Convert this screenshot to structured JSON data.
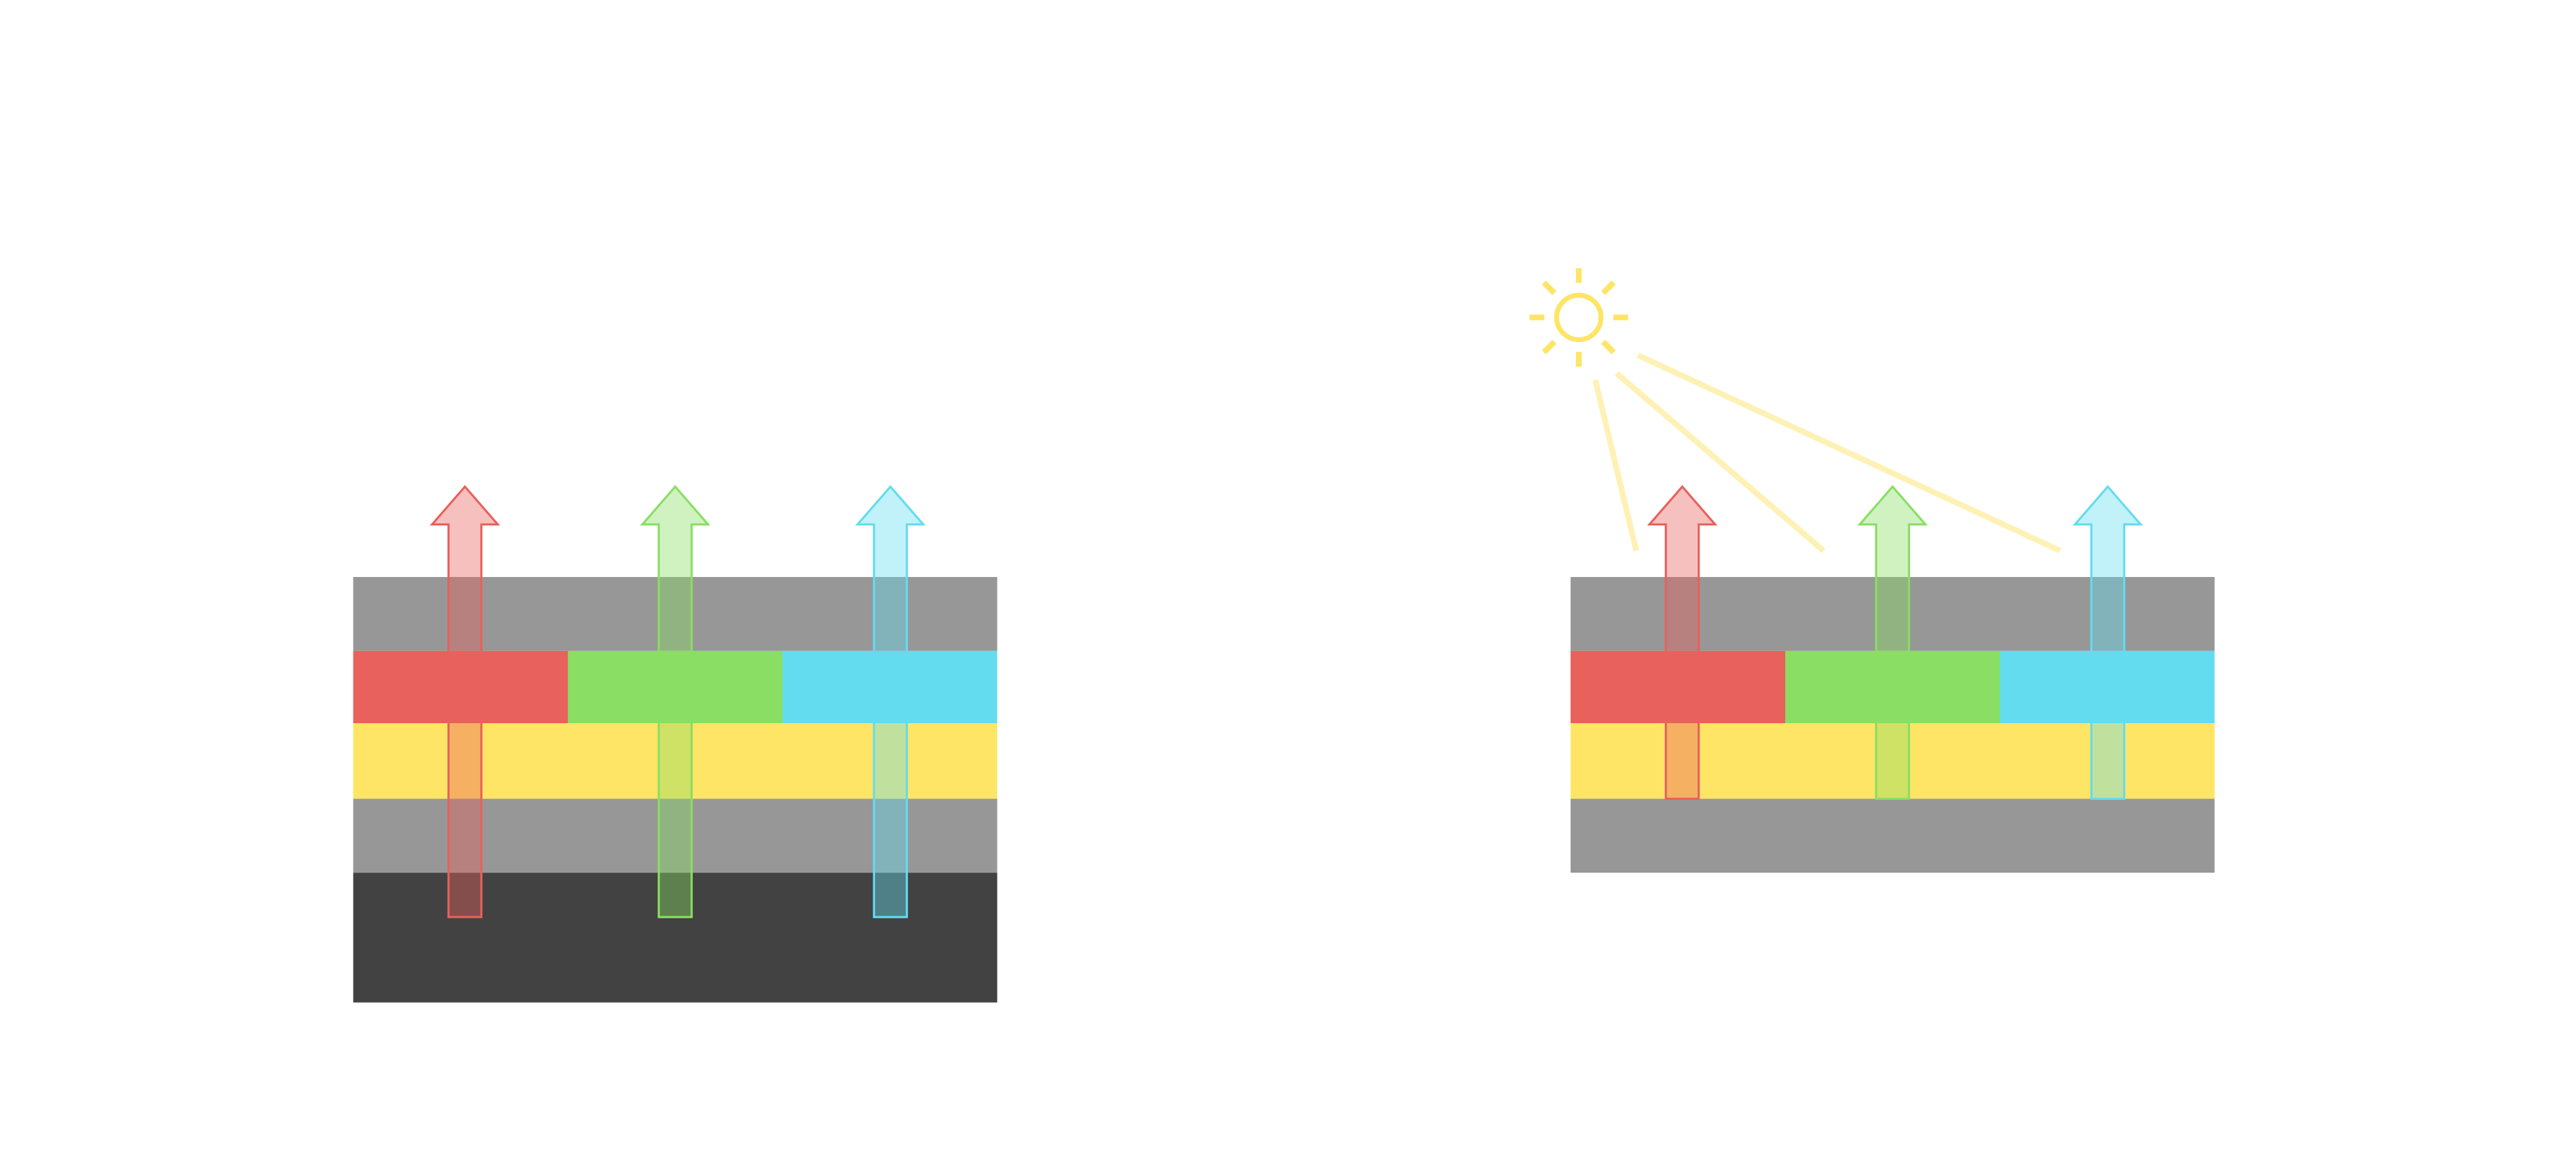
{
  "colors": {
    "layer_gray": "#979797",
    "layer_dark": "#424242",
    "layer_yellow": "#fee566",
    "filter_red": "#e8615c",
    "filter_green": "#89de63",
    "filter_cyan": "#63dcef",
    "sun": "#fee566",
    "sun_ray": "#fef1b5"
  },
  "panels": [
    {
      "name": "left-stack",
      "has_dark_base": true,
      "light_source": false
    },
    {
      "name": "right-stack",
      "has_dark_base": false,
      "light_source": true
    }
  ]
}
